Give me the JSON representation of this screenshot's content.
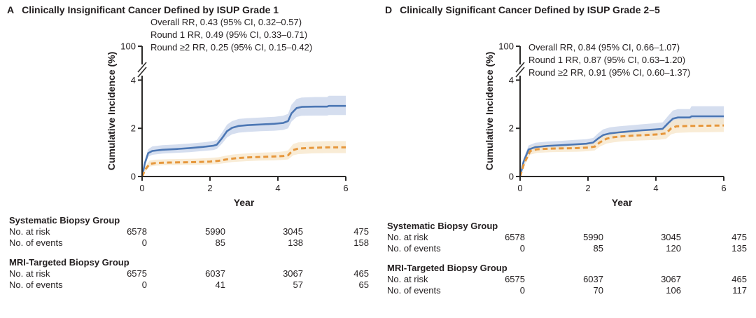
{
  "colors": {
    "axis": "#2b2a29",
    "text": "#231f20",
    "background": "#ffffff"
  },
  "chart_data": [
    {
      "type": "line",
      "panel": "A",
      "title": "Clinically Insignificant Cancer Defined by ISUP Grade 1",
      "annotations": [
        "Overall RR, 0.43 (95% CI, 0.32–0.57)",
        "Round 1 RR, 0.49 (95% CI, 0.33–0.71)",
        "Round ≥2 RR, 0.25 (95% CI, 0.15–0.42)"
      ],
      "xlabel": "Year",
      "ylabel": "Cumulative Incidence (%)",
      "x_ticks": [
        0,
        2,
        4,
        6
      ],
      "y_ticks": [
        0,
        2,
        4
      ],
      "y_axis_break": true,
      "y_top_label": "100",
      "xlim": [
        0,
        6
      ],
      "ylim": [
        0,
        4.6
      ],
      "legend_position": "none",
      "grid": false,
      "series": [
        {
          "name": "Systematic Biopsy Group",
          "style": "solid",
          "color": "#4c77b4",
          "band_color": "#cbd6eb",
          "x": [
            0,
            0.08,
            0.18,
            0.3,
            0.6,
            1.0,
            1.4,
            1.8,
            2.1,
            2.2,
            2.35,
            2.5,
            2.65,
            2.85,
            3.1,
            3.5,
            3.9,
            4.15,
            4.3,
            4.4,
            4.55,
            4.7,
            5.1,
            5.45,
            5.5,
            6.0
          ],
          "y": [
            0,
            0.55,
            0.97,
            1.06,
            1.11,
            1.14,
            1.18,
            1.23,
            1.28,
            1.32,
            1.58,
            1.88,
            2.02,
            2.1,
            2.13,
            2.16,
            2.19,
            2.22,
            2.3,
            2.62,
            2.84,
            2.89,
            2.9,
            2.9,
            2.93,
            2.93
          ],
          "lo": [
            0,
            0.42,
            0.82,
            0.9,
            0.95,
            0.98,
            1.01,
            1.06,
            1.1,
            1.14,
            1.36,
            1.62,
            1.75,
            1.82,
            1.85,
            1.88,
            1.9,
            1.93,
            2.0,
            2.28,
            2.47,
            2.52,
            2.53,
            2.53,
            2.55,
            2.55
          ],
          "hi": [
            0,
            0.69,
            1.13,
            1.25,
            1.3,
            1.33,
            1.37,
            1.42,
            1.47,
            1.52,
            1.82,
            2.15,
            2.3,
            2.39,
            2.42,
            2.45,
            2.48,
            2.52,
            2.6,
            2.98,
            3.22,
            3.28,
            3.3,
            3.3,
            3.35,
            3.35
          ]
        },
        {
          "name": "MRI-Targeted Biopsy Group",
          "style": "dashed",
          "color": "#e6973c",
          "band_color": "#f7e7cc",
          "x": [
            0,
            0.1,
            0.22,
            0.4,
            0.8,
            1.2,
            1.6,
            2.0,
            2.25,
            2.45,
            2.65,
            2.85,
            3.1,
            3.5,
            3.9,
            4.15,
            4.3,
            4.45,
            4.6,
            5.0,
            5.5,
            6.0
          ],
          "y": [
            0,
            0.3,
            0.52,
            0.56,
            0.58,
            0.59,
            0.6,
            0.62,
            0.65,
            0.7,
            0.74,
            0.77,
            0.79,
            0.81,
            0.83,
            0.85,
            0.88,
            1.1,
            1.16,
            1.19,
            1.21,
            1.21
          ],
          "lo": [
            0,
            0.21,
            0.41,
            0.45,
            0.47,
            0.48,
            0.48,
            0.5,
            0.52,
            0.56,
            0.6,
            0.62,
            0.64,
            0.66,
            0.67,
            0.69,
            0.71,
            0.88,
            0.93,
            0.96,
            0.97,
            0.97
          ],
          "hi": [
            0,
            0.42,
            0.66,
            0.7,
            0.72,
            0.73,
            0.74,
            0.77,
            0.8,
            0.86,
            0.91,
            0.94,
            0.96,
            0.99,
            1.01,
            1.04,
            1.08,
            1.35,
            1.42,
            1.45,
            1.47,
            1.47
          ]
        }
      ],
      "risk_table": {
        "groups": [
          {
            "name": "Systematic Biopsy Group",
            "rows": [
              {
                "label": "No. at risk",
                "values": [
                  "6578",
                  "5990",
                  "3045",
                  "475"
                ]
              },
              {
                "label": "No. of events",
                "values": [
                  "0",
                  "85",
                  "138",
                  "158"
                ]
              }
            ]
          },
          {
            "name": "MRI-Targeted Biopsy Group",
            "rows": [
              {
                "label": "No. at risk",
                "values": [
                  "6575",
                  "6037",
                  "3067",
                  "465"
                ]
              },
              {
                "label": "No. of events",
                "values": [
                  "0",
                  "41",
                  "57",
                  "65"
                ]
              }
            ]
          }
        ]
      }
    },
    {
      "type": "line",
      "panel": "D",
      "title": "Clinically Significant Cancer Defined by ISUP Grade 2–5",
      "annotations": [
        "Overall RR, 0.84 (95% CI, 0.66–1.07)",
        "Round 1 RR, 0.87 (95% CI, 0.63–1.20)",
        "Round ≥2 RR, 0.91 (95% CI, 0.60–1.37)"
      ],
      "xlabel": "Year",
      "ylabel": "Cumulative Incidence (%)",
      "x_ticks": [
        0,
        2,
        4,
        6
      ],
      "y_ticks": [
        0,
        2,
        4
      ],
      "y_axis_break": true,
      "y_top_label": "100",
      "xlim": [
        0,
        6
      ],
      "ylim": [
        0,
        4.6
      ],
      "legend_position": "none",
      "grid": false,
      "series": [
        {
          "name": "Systematic Biopsy Group",
          "style": "solid",
          "color": "#4c77b4",
          "band_color": "#cbd6eb",
          "x": [
            0,
            0.1,
            0.25,
            0.45,
            0.8,
            1.2,
            1.6,
            1.95,
            2.15,
            2.3,
            2.45,
            2.65,
            2.9,
            3.2,
            3.6,
            3.95,
            4.2,
            4.35,
            4.5,
            4.65,
            5.0,
            5.05,
            6.0
          ],
          "y": [
            0,
            0.6,
            1.12,
            1.22,
            1.27,
            1.3,
            1.33,
            1.36,
            1.41,
            1.58,
            1.72,
            1.79,
            1.83,
            1.87,
            1.92,
            1.95,
            1.98,
            2.2,
            2.4,
            2.45,
            2.45,
            2.5,
            2.5
          ],
          "lo": [
            0,
            0.48,
            0.97,
            1.06,
            1.11,
            1.13,
            1.16,
            1.19,
            1.23,
            1.38,
            1.5,
            1.56,
            1.6,
            1.63,
            1.67,
            1.7,
            1.73,
            1.92,
            2.08,
            2.12,
            2.12,
            2.16,
            2.16
          ],
          "hi": [
            0,
            0.74,
            1.29,
            1.4,
            1.45,
            1.48,
            1.52,
            1.55,
            1.6,
            1.8,
            1.96,
            2.04,
            2.08,
            2.12,
            2.17,
            2.21,
            2.25,
            2.5,
            2.74,
            2.8,
            2.8,
            2.92,
            2.92
          ]
        },
        {
          "name": "MRI-Targeted Biopsy Group",
          "style": "dashed",
          "color": "#e6973c",
          "band_color": "#f7e7cc",
          "x": [
            0,
            0.12,
            0.3,
            0.5,
            0.9,
            1.3,
            1.7,
            2.0,
            2.2,
            2.35,
            2.55,
            2.75,
            3.0,
            3.4,
            3.8,
            4.1,
            4.3,
            4.45,
            4.6,
            5.0,
            6.0
          ],
          "y": [
            0,
            0.55,
            1.06,
            1.13,
            1.16,
            1.17,
            1.18,
            1.2,
            1.24,
            1.42,
            1.57,
            1.63,
            1.67,
            1.7,
            1.73,
            1.75,
            1.79,
            2.0,
            2.08,
            2.1,
            2.12
          ],
          "lo": [
            0,
            0.44,
            0.91,
            0.98,
            1.01,
            1.02,
            1.03,
            1.05,
            1.08,
            1.24,
            1.37,
            1.42,
            1.46,
            1.49,
            1.51,
            1.53,
            1.56,
            1.75,
            1.81,
            1.83,
            1.85
          ],
          "hi": [
            0,
            0.68,
            1.23,
            1.3,
            1.33,
            1.34,
            1.36,
            1.38,
            1.42,
            1.62,
            1.79,
            1.86,
            1.9,
            1.93,
            1.97,
            1.99,
            2.03,
            2.27,
            2.37,
            2.39,
            2.41
          ]
        }
      ],
      "risk_table": {
        "groups": [
          {
            "name": "Systematic Biopsy Group",
            "rows": [
              {
                "label": "No. at risk",
                "values": [
                  "6578",
                  "5990",
                  "3045",
                  "475"
                ]
              },
              {
                "label": "No. of events",
                "values": [
                  "0",
                  "85",
                  "120",
                  "135"
                ]
              }
            ]
          },
          {
            "name": "MRI-Targeted Biopsy Group",
            "rows": [
              {
                "label": "No. at risk",
                "values": [
                  "6575",
                  "6037",
                  "3067",
                  "465"
                ]
              },
              {
                "label": "No. of events",
                "values": [
                  "0",
                  "70",
                  "106",
                  "117"
                ]
              }
            ]
          }
        ]
      }
    }
  ]
}
